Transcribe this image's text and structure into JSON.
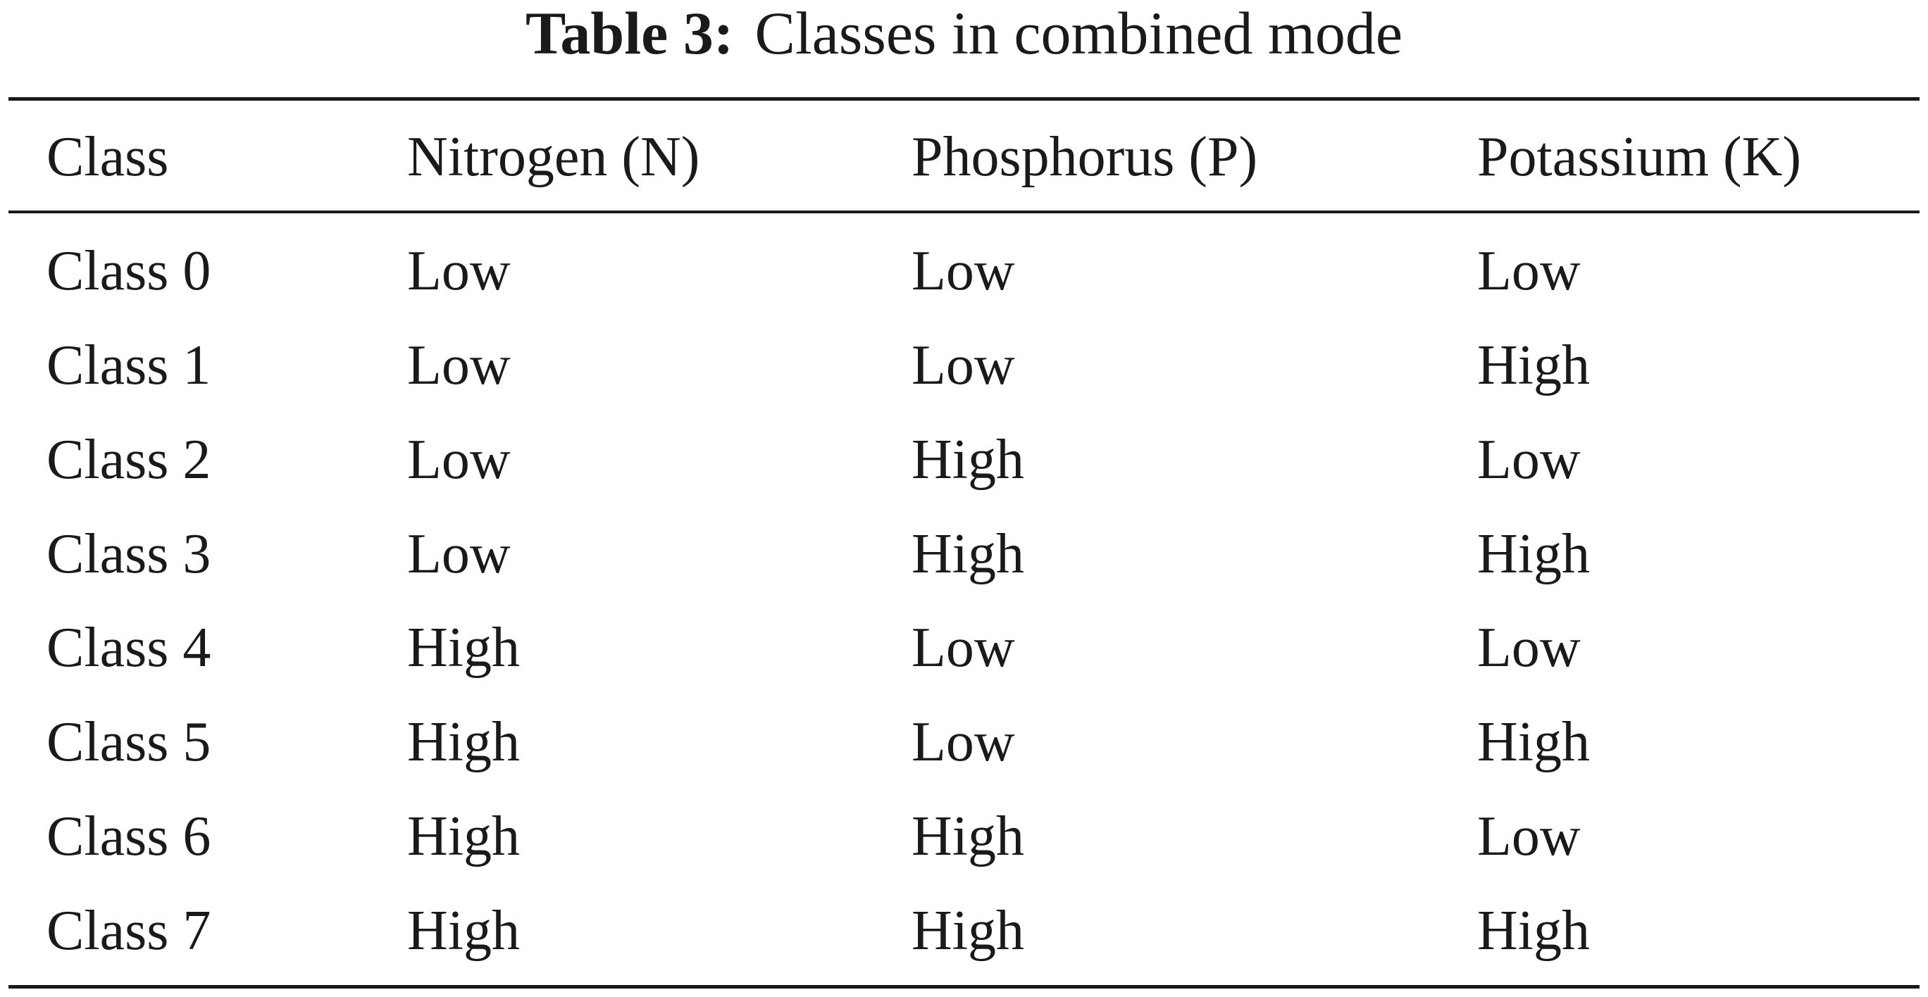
{
  "caption": {
    "label": "Table 3:",
    "text": "Classes in combined mode"
  },
  "table": {
    "headers": [
      "Class",
      "Nitrogen (N)",
      "Phosphorus (P)",
      "Potassium (K)"
    ],
    "rows": [
      [
        "Class 0",
        "Low",
        "Low",
        "Low"
      ],
      [
        "Class 1",
        "Low",
        "Low",
        "High"
      ],
      [
        "Class 2",
        "Low",
        "High",
        "Low"
      ],
      [
        "Class 3",
        "Low",
        "High",
        "High"
      ],
      [
        "Class 4",
        "High",
        "Low",
        "Low"
      ],
      [
        "Class 5",
        "High",
        "Low",
        "High"
      ],
      [
        "Class 6",
        "High",
        "High",
        "Low"
      ],
      [
        "Class 7",
        "High",
        "High",
        "High"
      ]
    ]
  }
}
